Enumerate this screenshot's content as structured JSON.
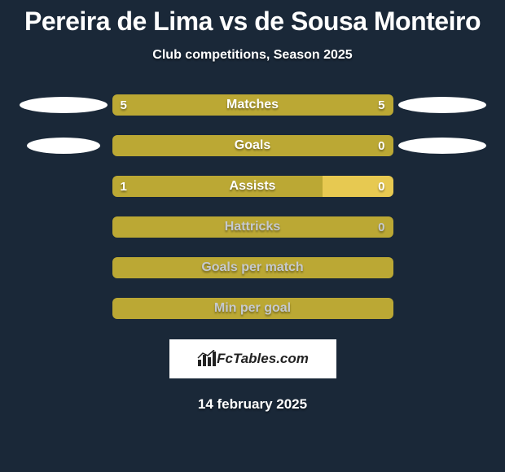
{
  "title": "Pereira de Lima vs de Sousa Monteiro",
  "subtitle": "Club competitions, Season 2025",
  "date": "14 february 2025",
  "logo_text": "FcTables.com",
  "background_color": "#1a2838",
  "rows": [
    {
      "label": "Matches",
      "left_value": "5",
      "right_value": "5",
      "left_color": "#bba834",
      "right_color": "#bba834",
      "left_pct": 50,
      "right_pct": 50,
      "label_color": "#ffffff",
      "value_color": "#ffffff",
      "show_left_value": true,
      "show_right_value": true,
      "ellipse_left_w": 108,
      "ellipse_right_w": 108
    },
    {
      "label": "Goals",
      "left_value": "",
      "right_value": "0",
      "left_color": "#bba834",
      "right_color": "#bba834",
      "left_pct": 100,
      "right_pct": 0,
      "label_color": "#ffffff",
      "value_color": "#ffffff",
      "show_left_value": false,
      "show_right_value": true,
      "ellipse_left_w": 90,
      "ellipse_right_w": 108
    },
    {
      "label": "Assists",
      "left_value": "1",
      "right_value": "0",
      "left_color": "#bba834",
      "right_color": "#e7c951",
      "left_pct": 75,
      "right_pct": 25,
      "label_color": "#ffffff",
      "value_color": "#ffffff",
      "show_left_value": true,
      "show_right_value": true,
      "ellipse_left_w": 0,
      "ellipse_right_w": 0
    },
    {
      "label": "Hattricks",
      "left_value": "",
      "right_value": "0",
      "left_color": "#bba834",
      "right_color": "#bba834",
      "left_pct": 100,
      "right_pct": 0,
      "label_color": "#c5c9cf",
      "value_color": "#c5c9cf",
      "show_left_value": false,
      "show_right_value": true,
      "ellipse_left_w": 0,
      "ellipse_right_w": 0
    },
    {
      "label": "Goals per match",
      "left_value": "",
      "right_value": "",
      "left_color": "#bba834",
      "right_color": "#bba834",
      "left_pct": 100,
      "right_pct": 0,
      "label_color": "#c5c9cf",
      "value_color": "#c5c9cf",
      "show_left_value": false,
      "show_right_value": false,
      "ellipse_left_w": 0,
      "ellipse_right_w": 0
    },
    {
      "label": "Min per goal",
      "left_value": "",
      "right_value": "",
      "left_color": "#bba834",
      "right_color": "#bba834",
      "left_pct": 100,
      "right_pct": 0,
      "label_color": "#c5c9cf",
      "value_color": "#c5c9cf",
      "show_left_value": false,
      "show_right_value": false,
      "ellipse_left_w": 0,
      "ellipse_right_w": 0
    }
  ]
}
